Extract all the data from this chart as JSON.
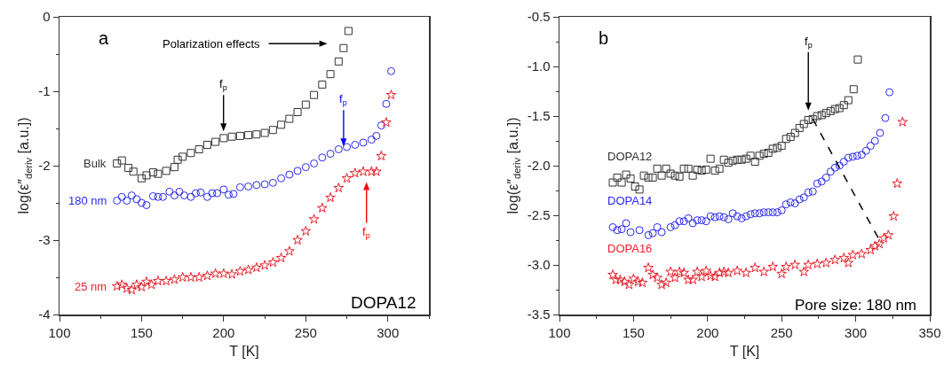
{
  "chart_data": [
    {
      "type": "scatter",
      "xlabel": "T [K]",
      "ylabel": "log(ε″$_{deriv}$ [a.u.])",
      "xlim": [
        100,
        325
      ],
      "ylim": [
        -4,
        0
      ],
      "xticks": [
        100,
        150,
        200,
        250,
        300
      ],
      "yticks": [
        -4,
        -3,
        -2,
        -1,
        0
      ],
      "grid": false,
      "legend": false,
      "annotations": [
        "a",
        "DOPA12",
        "Polarization effects",
        "f$_{p}$",
        "f$_{p}$",
        "f$_{p}$"
      ],
      "series": [
        {
          "name": "Bulk",
          "color": "#333333",
          "marker": "square",
          "x": [
            135,
            138,
            142,
            145,
            150,
            153,
            157,
            160,
            165,
            170,
            172,
            175,
            180,
            185,
            190,
            195,
            200,
            205,
            210,
            215,
            220,
            225,
            230,
            235,
            240,
            245,
            250,
            255,
            260,
            265,
            270,
            273,
            276
          ],
          "values": [
            -1.97,
            -1.93,
            -2.03,
            -2.08,
            -2.17,
            -2.13,
            -2.09,
            -2.11,
            -2.07,
            -2.02,
            -1.92,
            -1.88,
            -1.83,
            -1.78,
            -1.72,
            -1.68,
            -1.63,
            -1.61,
            -1.6,
            -1.59,
            -1.58,
            -1.56,
            -1.52,
            -1.45,
            -1.37,
            -1.28,
            -1.18,
            -1.05,
            -0.91,
            -0.77,
            -0.6,
            -0.42,
            -0.19
          ]
        },
        {
          "name": "180 nm",
          "color": "#2a2af0",
          "marker": "circle",
          "x": [
            135,
            138,
            141,
            144,
            147,
            150,
            153,
            157,
            160,
            163,
            167,
            170,
            173,
            176,
            180,
            183,
            186,
            190,
            193,
            196,
            200,
            203,
            206,
            210,
            215,
            220,
            225,
            230,
            235,
            240,
            245,
            250,
            255,
            260,
            265,
            270,
            275,
            280,
            285,
            290,
            293,
            296,
            299,
            302
          ],
          "values": [
            -2.47,
            -2.42,
            -2.47,
            -2.4,
            -2.45,
            -2.5,
            -2.53,
            -2.41,
            -2.42,
            -2.42,
            -2.35,
            -2.4,
            -2.35,
            -2.4,
            -2.42,
            -2.37,
            -2.36,
            -2.42,
            -2.37,
            -2.37,
            -2.32,
            -2.39,
            -2.38,
            -2.29,
            -2.28,
            -2.26,
            -2.25,
            -2.23,
            -2.17,
            -2.12,
            -2.07,
            -2.02,
            -1.97,
            -1.89,
            -1.84,
            -1.78,
            -1.75,
            -1.72,
            -1.69,
            -1.65,
            -1.6,
            -1.46,
            -1.17,
            -0.73
          ]
        },
        {
          "name": "25 nm",
          "color": "#e8202a",
          "marker": "star",
          "x": [
            135,
            138,
            141,
            144,
            147,
            150,
            153,
            156,
            160,
            165,
            170,
            175,
            180,
            185,
            190,
            195,
            200,
            205,
            210,
            215,
            220,
            225,
            230,
            235,
            240,
            245,
            250,
            255,
            260,
            265,
            270,
            275,
            280,
            285,
            290,
            293,
            296,
            299,
            302
          ],
          "values": [
            -3.62,
            -3.6,
            -3.65,
            -3.67,
            -3.6,
            -3.63,
            -3.56,
            -3.6,
            -3.55,
            -3.55,
            -3.53,
            -3.5,
            -3.5,
            -3.5,
            -3.48,
            -3.45,
            -3.45,
            -3.46,
            -3.42,
            -3.4,
            -3.37,
            -3.34,
            -3.3,
            -3.24,
            -3.15,
            -3.0,
            -2.88,
            -2.72,
            -2.57,
            -2.43,
            -2.3,
            -2.17,
            -2.1,
            -2.08,
            -2.08,
            -2.08,
            -1.87,
            -1.42,
            -1.05
          ]
        }
      ]
    },
    {
      "type": "scatter",
      "xlabel": "T [K]",
      "ylabel": "log(ε″$_{deriv}$ [a.u.])",
      "xlim": [
        100,
        350
      ],
      "ylim": [
        -3.5,
        -0.5
      ],
      "xticks": [
        100,
        150,
        200,
        250,
        300,
        350
      ],
      "yticks": [
        {
          "value": -3.5,
          "label": "-3.5"
        },
        {
          "value": -3,
          "label": "-3.0"
        },
        {
          "value": -2.5,
          "label": "-2.5"
        },
        {
          "value": -2,
          "label": "-2.0"
        },
        {
          "value": -1.5,
          "label": "-1.5"
        },
        {
          "value": -1,
          "label": "-1.0"
        },
        {
          "value": -0.5,
          "label": "-0.5"
        }
      ],
      "grid": false,
      "legend": false,
      "annotations": [
        "b",
        "Pore size: 180 nm",
        "f$_{p}$"
      ],
      "series": [
        {
          "name": "DOPA12",
          "color": "#333333",
          "marker": "square",
          "x": [
            136,
            139,
            142,
            145,
            148,
            151,
            154,
            157,
            160,
            163,
            166,
            169,
            172,
            175,
            178,
            181,
            184,
            187,
            190,
            193,
            196,
            199,
            202,
            205,
            208,
            211,
            214,
            217,
            220,
            223,
            226,
            229,
            232,
            235,
            238,
            241,
            244,
            247,
            250,
            253,
            256,
            259,
            262,
            265,
            268,
            271,
            274,
            277,
            280,
            283,
            286,
            289,
            292,
            295,
            298.6,
            301.4
          ],
          "values": [
            -2.17,
            -2.12,
            -2.17,
            -2.09,
            -2.13,
            -2.21,
            -2.24,
            -2.1,
            -2.12,
            -2.12,
            -2.03,
            -2.1,
            -2.03,
            -2.08,
            -2.1,
            -2.11,
            -2.03,
            -2.03,
            -2.1,
            -2.04,
            -2.05,
            -2.04,
            -1.93,
            -2.05,
            -2.03,
            -1.94,
            -1.97,
            -1.95,
            -1.94,
            -1.94,
            -1.93,
            -1.9,
            -1.96,
            -1.9,
            -1.88,
            -1.87,
            -1.83,
            -1.82,
            -1.8,
            -1.73,
            -1.71,
            -1.67,
            -1.62,
            -1.58,
            -1.54,
            -1.53,
            -1.5,
            -1.49,
            -1.47,
            -1.45,
            -1.43,
            -1.42,
            -1.39,
            -1.34,
            -1.23,
            -0.93
          ]
        },
        {
          "name": "DOPA14",
          "color": "#2a2af0",
          "marker": "circle",
          "x": [
            136,
            139,
            142,
            145,
            148,
            154,
            160,
            163,
            166,
            169,
            175,
            178,
            181,
            184,
            187,
            190,
            193,
            196,
            199,
            202,
            205,
            208,
            211,
            214,
            217,
            220,
            223,
            226,
            229,
            232,
            235,
            238,
            241,
            244,
            247,
            250,
            253,
            256,
            259,
            262,
            265,
            268,
            271,
            274,
            277,
            280,
            283,
            286,
            289,
            292,
            295,
            298,
            301,
            304,
            307,
            310,
            313,
            316.4,
            320,
            322.8
          ],
          "values": [
            -2.62,
            -2.65,
            -2.64,
            -2.58,
            -2.67,
            -2.65,
            -2.7,
            -2.68,
            -2.62,
            -2.67,
            -2.62,
            -2.6,
            -2.56,
            -2.56,
            -2.53,
            -2.58,
            -2.55,
            -2.55,
            -2.56,
            -2.51,
            -2.52,
            -2.51,
            -2.52,
            -2.54,
            -2.48,
            -2.51,
            -2.53,
            -2.51,
            -2.49,
            -2.48,
            -2.48,
            -2.47,
            -2.47,
            -2.47,
            -2.47,
            -2.45,
            -2.39,
            -2.37,
            -2.38,
            -2.34,
            -2.32,
            -2.27,
            -2.26,
            -2.18,
            -2.16,
            -2.12,
            -2.06,
            -2.02,
            -2.0,
            -1.96,
            -1.92,
            -1.91,
            -1.9,
            -1.89,
            -1.85,
            -1.8,
            -1.75,
            -1.67,
            -1.52,
            -1.26
          ]
        },
        {
          "name": "DOPA16",
          "color": "#e8202a",
          "marker": "star",
          "x": [
            136,
            138,
            141,
            144,
            147,
            150,
            153,
            156,
            160,
            163,
            166,
            169,
            172,
            175,
            178,
            181,
            184,
            187,
            190,
            193,
            196,
            199,
            202,
            205,
            208,
            211,
            214,
            220,
            226,
            232,
            238,
            244,
            250,
            253,
            259,
            265,
            268,
            274,
            280,
            286,
            292,
            295,
            298,
            304,
            310,
            313,
            316,
            319,
            322,
            325.6,
            328,
            331.6
          ],
          "values": [
            -3.1,
            -3.15,
            -3.15,
            -3.17,
            -3.2,
            -3.14,
            -3.17,
            -3.18,
            -3.03,
            -3.1,
            -3.13,
            -3.2,
            -3.18,
            -3.07,
            -3.13,
            -3.07,
            -3.08,
            -3.15,
            -3.15,
            -3.07,
            -3.12,
            -3.06,
            -3.11,
            -3.12,
            -3.08,
            -3.07,
            -3.08,
            -3.06,
            -3.08,
            -3.03,
            -3.07,
            -3.02,
            -3.09,
            -3.02,
            -3.0,
            -3.07,
            -3.0,
            -2.99,
            -2.98,
            -2.95,
            -2.93,
            -2.98,
            -2.9,
            -2.89,
            -2.85,
            -2.81,
            -2.79,
            -2.73,
            -2.7,
            -2.51,
            -2.18,
            -1.56
          ]
        },
        {
          "type": "line",
          "color": "#000000",
          "line_style": "dashed",
          "marker": "none",
          "x": [
            271,
            316
          ],
          "values": [
            -1.53,
            -2.75
          ]
        }
      ]
    }
  ]
}
